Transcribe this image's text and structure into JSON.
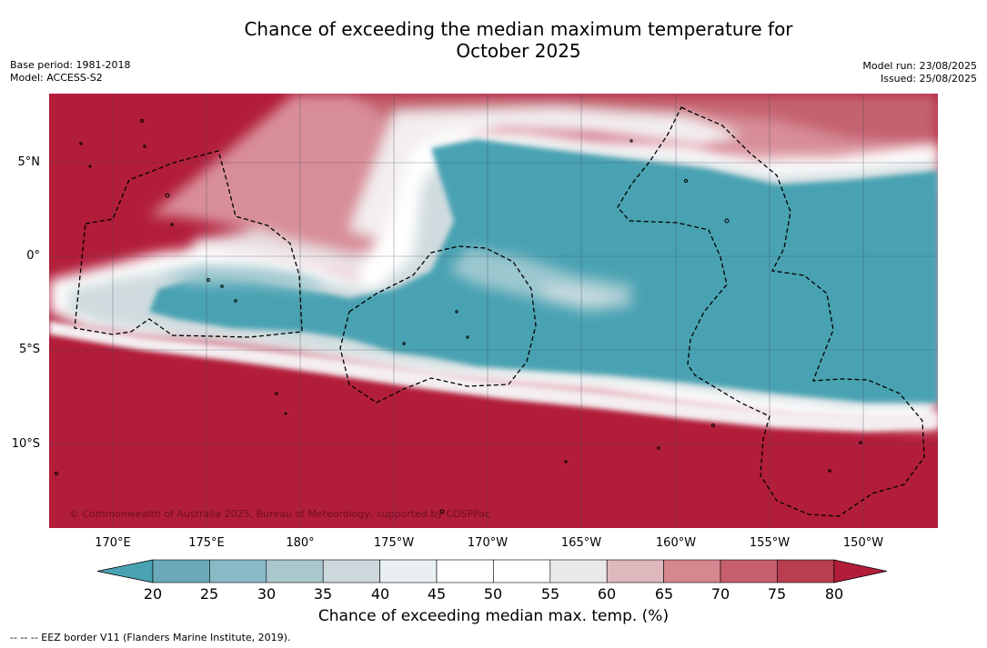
{
  "header": {
    "title_line1": "Chance of exceeding the median maximum temperature for",
    "title_line2": "October 2025",
    "base_period": "Base period: 1981-2018",
    "model": "Model: ACCESS-S2",
    "model_run": "Model run: 23/08/2025",
    "issued": "Issued: 25/08/2025"
  },
  "map": {
    "copyright": "© Commonwealth of Australia 2025, Bureau of Meteorology, supported by COSPPac",
    "lat_labels": [
      "5°N",
      "0°",
      "5°S",
      "10°S"
    ],
    "lon_labels": [
      "170°E",
      "175°E",
      "180°",
      "175°W",
      "170°W",
      "165°W",
      "160°W",
      "155°W",
      "150°W"
    ],
    "background_color": "#b21d3a",
    "cool_color": "#49a2b2"
  },
  "colorbar": {
    "ticks": [
      "20",
      "25",
      "30",
      "35",
      "40",
      "45",
      "50",
      "55",
      "60",
      "65",
      "70",
      "75",
      "80"
    ],
    "colors": [
      "#6aaab8",
      "#8ab9c6",
      "#a9c7cc",
      "#ccd8db",
      "#e9eff2",
      "#ffffff",
      "#ffffff",
      "#e9e9eb",
      "#ddb8bd",
      "#d58890",
      "#c65f6c",
      "#b93e50"
    ],
    "under_color": "#49a2b2",
    "over_color": "#b21d3a",
    "label": "Chance of exceeding median max. temp. (%)"
  },
  "footnote": "--  --  -- EEZ border V11 (Flanders Marine Institute, 2019)."
}
